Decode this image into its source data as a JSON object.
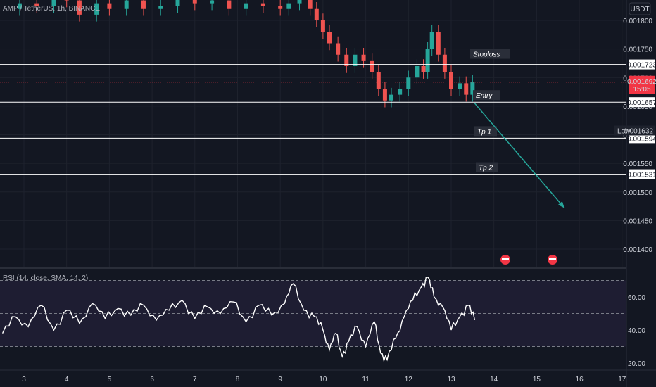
{
  "header": {
    "symbol_line": "AMP / TetherUS, 1h, BINANCE"
  },
  "currency_button": "USDT",
  "colors": {
    "background": "#131722",
    "up": "#26a69a",
    "down": "#ef5350",
    "level_line": "#ffffff",
    "current_price": "#f23645",
    "rsi_line": "#ffffff",
    "rsi_band": "#7e57c2",
    "projection": "#26a69a"
  },
  "chart_data": [
    {
      "type": "candlestick",
      "y_ticks": [
        "0.001800",
        "0.001750",
        "0.001700",
        "0.001650",
        "0.001600",
        "0.001550",
        "0.001500",
        "0.001450",
        "0.001400"
      ],
      "y_tick_values": [
        0.0018,
        0.00175,
        0.0017,
        0.00165,
        0.0016,
        0.00155,
        0.0015,
        0.00145,
        0.0014
      ],
      "x_ticks": [
        "3",
        "4",
        "5",
        "6",
        "7",
        "8",
        "9",
        "10",
        "11",
        "12",
        "13",
        "14",
        "15",
        "16",
        "17"
      ],
      "levels": [
        {
          "label": "Stoploss",
          "price": 0.001723,
          "price_label": "0.001723"
        },
        {
          "label": "Entry",
          "price": 0.001657,
          "price_label": "0.001657"
        },
        {
          "label": "Tp 1",
          "price": 0.001594,
          "price_label": "0.001594"
        },
        {
          "label": "Tp 2",
          "price": 0.001531,
          "price_label": "0.001531"
        }
      ],
      "current_price": {
        "value": 0.001692,
        "label": "0.001692",
        "countdown": "15:05"
      },
      "low": {
        "label": "Low",
        "value": 0.001632,
        "value_label": "0.001632"
      },
      "projection": {
        "from": {
          "x": 13.55,
          "y": 0.001655
        },
        "to": {
          "x": 15.65,
          "y": 0.001472
        }
      },
      "series": [
        {
          "x": [
            2.5,
            2.9,
            3.3,
            3.7,
            4.0,
            4.3,
            4.7,
            5.0,
            5.4,
            5.8,
            6.2,
            6.6,
            7.0,
            7.4,
            7.8,
            8.2,
            8.6,
            9.0,
            9.2,
            9.45,
            9.7,
            9.85,
            10.0,
            10.15,
            10.35,
            10.55,
            10.75,
            10.95,
            11.15,
            11.3,
            11.45,
            11.6,
            11.8,
            12.0,
            12.2,
            12.35,
            12.45,
            12.55,
            12.7,
            12.85,
            13.0,
            13.2,
            13.35,
            13.5
          ],
          "close": [
            0.00182,
            0.00183,
            0.001825,
            0.00184,
            0.001835,
            0.00181,
            0.00183,
            0.00182,
            0.001835,
            0.00182,
            0.001825,
            0.00184,
            0.00183,
            0.001835,
            0.00182,
            0.00183,
            0.001825,
            0.00182,
            0.00183,
            0.001838,
            0.00182,
            0.0018,
            0.00178,
            0.00176,
            0.00174,
            0.00172,
            0.00174,
            0.00173,
            0.00171,
            0.00168,
            0.00166,
            0.00167,
            0.00168,
            0.0017,
            0.00172,
            0.00171,
            0.00175,
            0.00178,
            0.00174,
            0.00171,
            0.00168,
            0.00169,
            0.00167,
            0.001692
          ]
        }
      ]
    },
    {
      "type": "line",
      "name": "RSI (14, close, SMA, 14, 2)",
      "y_ticks": [
        "60.00",
        "40.00",
        "20.00"
      ],
      "y_tick_values": [
        60,
        40,
        20
      ],
      "bands": [
        70,
        50,
        30
      ],
      "x": [
        2.5,
        2.8,
        3.1,
        3.4,
        3.7,
        4.0,
        4.3,
        4.6,
        4.9,
        5.2,
        5.5,
        5.8,
        6.1,
        6.4,
        6.7,
        7.0,
        7.3,
        7.6,
        7.9,
        8.2,
        8.5,
        8.8,
        9.1,
        9.3,
        9.55,
        9.8,
        10.0,
        10.15,
        10.3,
        10.45,
        10.6,
        10.8,
        11.0,
        11.2,
        11.35,
        11.5,
        11.7,
        11.9,
        12.1,
        12.3,
        12.45,
        12.6,
        12.8,
        13.0,
        13.2,
        13.4,
        13.55
      ],
      "values": [
        38,
        48,
        42,
        55,
        40,
        52,
        44,
        56,
        47,
        53,
        49,
        55,
        46,
        52,
        58,
        47,
        54,
        50,
        57,
        45,
        55,
        49,
        56,
        68,
        52,
        48,
        40,
        28,
        38,
        24,
        33,
        42,
        30,
        45,
        26,
        22,
        35,
        48,
        58,
        66,
        72,
        60,
        54,
        40,
        48,
        55,
        46
      ]
    }
  ]
}
